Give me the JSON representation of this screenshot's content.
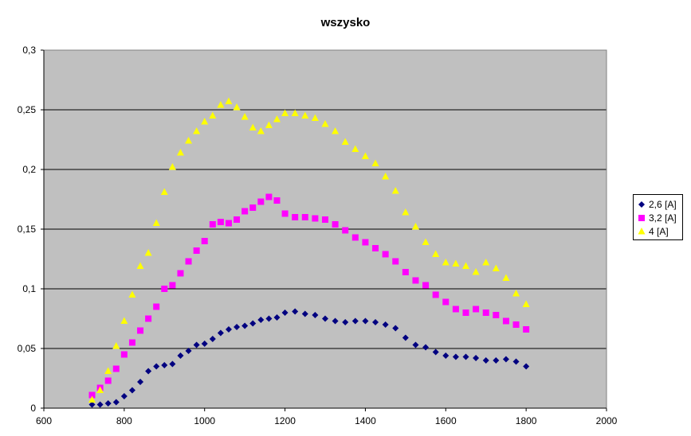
{
  "chart_data": {
    "type": "scatter",
    "title": "wszysko",
    "xlabel": "",
    "ylabel": "",
    "xlim": [
      600,
      2000
    ],
    "ylim": [
      0,
      0.3
    ],
    "x_ticks": [
      "600",
      "800",
      "1000",
      "1200",
      "1400",
      "1600",
      "1800",
      "2000"
    ],
    "y_ticks": [
      "0",
      "0,05",
      "0,1",
      "0,15",
      "0,2",
      "0,25",
      "0,3"
    ],
    "grid": "horizontal",
    "background": "#c0c0c0",
    "legend_position": "right",
    "series": [
      {
        "name": "2,6 [A]",
        "marker": "diamond",
        "color": "#000080",
        "x": [
          720,
          740,
          760,
          780,
          800,
          820,
          840,
          860,
          880,
          900,
          920,
          940,
          960,
          980,
          1000,
          1020,
          1040,
          1060,
          1080,
          1100,
          1120,
          1140,
          1160,
          1180,
          1200,
          1225,
          1250,
          1275,
          1300,
          1325,
          1350,
          1375,
          1400,
          1425,
          1450,
          1475,
          1500,
          1525,
          1550,
          1575,
          1600,
          1625,
          1650,
          1675,
          1700,
          1725,
          1750,
          1775,
          1800
        ],
        "y": [
          0.003,
          0.003,
          0.004,
          0.005,
          0.01,
          0.015,
          0.022,
          0.031,
          0.035,
          0.036,
          0.037,
          0.044,
          0.048,
          0.053,
          0.054,
          0.058,
          0.063,
          0.066,
          0.068,
          0.069,
          0.071,
          0.074,
          0.075,
          0.076,
          0.08,
          0.081,
          0.079,
          0.078,
          0.075,
          0.073,
          0.072,
          0.073,
          0.073,
          0.072,
          0.07,
          0.067,
          0.059,
          0.053,
          0.051,
          0.047,
          0.044,
          0.043,
          0.043,
          0.042,
          0.04,
          0.04,
          0.041,
          0.039,
          0.035
        ]
      },
      {
        "name": "3,2 [A]",
        "marker": "square",
        "color": "#ff00ff",
        "x": [
          720,
          740,
          760,
          780,
          800,
          820,
          840,
          860,
          880,
          900,
          920,
          940,
          960,
          980,
          1000,
          1020,
          1040,
          1060,
          1080,
          1100,
          1120,
          1140,
          1160,
          1180,
          1200,
          1225,
          1250,
          1275,
          1300,
          1325,
          1350,
          1375,
          1400,
          1425,
          1450,
          1475,
          1500,
          1525,
          1550,
          1575,
          1600,
          1625,
          1650,
          1675,
          1700,
          1725,
          1750,
          1775,
          1800
        ],
        "y": [
          0.011,
          0.017,
          0.023,
          0.033,
          0.045,
          0.055,
          0.065,
          0.075,
          0.085,
          0.1,
          0.103,
          0.113,
          0.123,
          0.132,
          0.14,
          0.154,
          0.156,
          0.155,
          0.158,
          0.165,
          0.168,
          0.173,
          0.177,
          0.174,
          0.163,
          0.16,
          0.16,
          0.159,
          0.158,
          0.154,
          0.149,
          0.143,
          0.139,
          0.134,
          0.129,
          0.123,
          0.114,
          0.107,
          0.103,
          0.095,
          0.089,
          0.083,
          0.08,
          0.083,
          0.08,
          0.078,
          0.073,
          0.07,
          0.066
        ]
      },
      {
        "name": "4 [A]",
        "marker": "triangle",
        "color": "#ffff00",
        "x": [
          720,
          740,
          760,
          780,
          800,
          820,
          840,
          860,
          880,
          900,
          920,
          940,
          960,
          980,
          1000,
          1020,
          1040,
          1060,
          1080,
          1100,
          1120,
          1140,
          1160,
          1180,
          1200,
          1225,
          1250,
          1275,
          1300,
          1325,
          1350,
          1375,
          1400,
          1425,
          1450,
          1475,
          1500,
          1525,
          1550,
          1575,
          1600,
          1625,
          1650,
          1675,
          1700,
          1725,
          1750,
          1775,
          1800
        ],
        "y": [
          0.007,
          0.015,
          0.031,
          0.052,
          0.073,
          0.095,
          0.119,
          0.13,
          0.155,
          0.181,
          0.202,
          0.214,
          0.224,
          0.232,
          0.24,
          0.245,
          0.254,
          0.257,
          0.252,
          0.244,
          0.235,
          0.232,
          0.237,
          0.242,
          0.247,
          0.247,
          0.245,
          0.243,
          0.238,
          0.232,
          0.223,
          0.217,
          0.211,
          0.205,
          0.194,
          0.182,
          0.164,
          0.152,
          0.139,
          0.129,
          0.122,
          0.121,
          0.119,
          0.114,
          0.122,
          0.117,
          0.109,
          0.096,
          0.087
        ]
      }
    ]
  }
}
